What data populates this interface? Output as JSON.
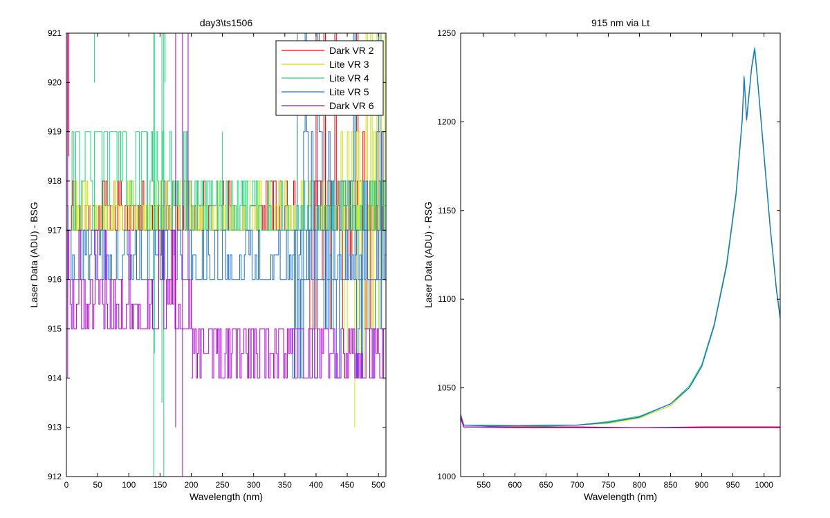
{
  "chart_data": [
    {
      "type": "line",
      "title": "day3\\ts1506",
      "xlabel": "Wavelength (nm)",
      "ylabel": "Laser Data (ADU) - BSG",
      "xlim": [
        0,
        512
      ],
      "ylim": [
        912,
        921
      ],
      "xticks": [
        0,
        50,
        100,
        150,
        200,
        250,
        300,
        350,
        400,
        450,
        500
      ],
      "yticks": [
        912,
        913,
        914,
        915,
        916,
        917,
        918,
        919,
        920,
        921
      ],
      "grid": false,
      "legend_position": "top-right",
      "series": [
        {
          "name": "Dark VR 2",
          "color": "#ff0000",
          "segments": [
            {
              "x0": 0,
              "x1": 512,
              "values": [
                917,
                917.5,
                918
              ],
              "step": 2,
              "seed": 11,
              "p": [
                0.55,
                0.25,
                0.2
              ]
            },
            {
              "x0": 385,
              "x1": 512,
              "values": [
                915,
                916,
                917,
                918,
                919,
                921
              ],
              "step": 2.5,
              "seed": 12,
              "p": [
                0.12,
                0.15,
                0.3,
                0.25,
                0.1,
                0.08
              ]
            }
          ],
          "spikes": [
            [
              0,
              921
            ],
            [
              2,
              919
            ],
            [
              4,
              918.5
            ],
            [
              398,
              921
            ],
            [
              400,
              915
            ],
            [
              405,
              920
            ],
            [
              420,
              921
            ],
            [
              455,
              921
            ]
          ]
        },
        {
          "name": "Lite VR 3",
          "color": "#c8e600",
          "segments": [
            {
              "x0": 0,
              "x1": 512,
              "values": [
                917,
                917.5,
                918
              ],
              "step": 2,
              "seed": 21,
              "p": [
                0.5,
                0.3,
                0.2
              ]
            },
            {
              "x0": 435,
              "x1": 512,
              "values": [
                914,
                915,
                916,
                917,
                918,
                919,
                921
              ],
              "step": 2.5,
              "seed": 22,
              "p": [
                0.1,
                0.15,
                0.15,
                0.2,
                0.2,
                0.1,
                0.1
              ]
            }
          ],
          "spikes": [
            [
              462,
              913
            ],
            [
              440,
              921
            ],
            [
              505,
              916
            ],
            [
              510,
              917.5
            ]
          ]
        },
        {
          "name": "Lite VR 4",
          "color": "#1fd67a",
          "segments": [
            {
              "x0": 0,
              "x1": 130,
              "values": [
                917,
                917.5,
                918,
                919
              ],
              "step": 3,
              "seed": 31,
              "p": [
                0.15,
                0.1,
                0.2,
                0.55
              ]
            },
            {
              "x0": 130,
              "x1": 250,
              "values": [
                917,
                917.5,
                918,
                919
              ],
              "step": 2,
              "seed": 32,
              "p": [
                0.35,
                0.25,
                0.25,
                0.15
              ]
            },
            {
              "x0": 250,
              "x1": 512,
              "values": [
                917,
                917.5,
                918
              ],
              "step": 2,
              "seed": 33,
              "p": [
                0.5,
                0.3,
                0.2
              ]
            }
          ],
          "spikes": [
            [
              45,
              920
            ],
            [
              140,
              912
            ],
            [
              141,
              914.5
            ],
            [
              150,
              921
            ],
            [
              153,
              913.5
            ],
            [
              156,
              912
            ],
            [
              158,
              920
            ]
          ]
        },
        {
          "name": "Lite VR 5",
          "color": "#1a6fd6",
          "segments": [
            {
              "x0": 0,
              "x1": 512,
              "values": [
                916,
                916.5,
                917
              ],
              "step": 2.5,
              "seed": 41,
              "p": [
                0.55,
                0.2,
                0.25
              ]
            },
            {
              "x0": 360,
              "x1": 512,
              "values": [
                914,
                915,
                916,
                917,
                918,
                919,
                921
              ],
              "step": 2.5,
              "seed": 42,
              "p": [
                0.15,
                0.15,
                0.2,
                0.15,
                0.2,
                0.1,
                0.05
              ]
            }
          ],
          "spikes": [
            [
              0,
              918
            ],
            [
              365,
              921
            ],
            [
              370,
              914
            ],
            [
              512,
              918
            ]
          ]
        },
        {
          "name": "Dark VR 6",
          "color": "#b000e0",
          "segments": [
            {
              "x0": 0,
              "x1": 200,
              "values": [
                915,
                915.5,
                916,
                917
              ],
              "step": 2,
              "seed": 51,
              "p": [
                0.45,
                0.2,
                0.25,
                0.1
              ]
            },
            {
              "x0": 200,
              "x1": 512,
              "values": [
                914,
                914.5,
                915
              ],
              "step": 2,
              "seed": 52,
              "p": [
                0.3,
                0.25,
                0.45
              ]
            }
          ],
          "spikes": [
            [
              2,
              914
            ],
            [
              186,
              912
            ],
            [
              188,
              921
            ],
            [
              195,
              916
            ],
            [
              175,
              913
            ]
          ]
        }
      ]
    },
    {
      "type": "line",
      "title": "915 nm via Lt",
      "xlabel": "Wavelength (nm)",
      "ylabel": "Laser Data (ADU) - RSG",
      "xlim": [
        513,
        1026
      ],
      "ylim": [
        1000,
        1250
      ],
      "xticks": [
        550,
        600,
        650,
        700,
        750,
        800,
        850,
        900,
        950,
        1000
      ],
      "yticks": [
        1000,
        1050,
        1100,
        1150,
        1200,
        1250
      ],
      "grid": false,
      "series": [
        {
          "name": "Lite VR 3",
          "color": "#c8e600",
          "points": [
            [
              513,
              1034
            ],
            [
              518,
              1029
            ],
            [
              560,
              1028.5
            ],
            [
              650,
              1028.5
            ],
            [
              700,
              1029
            ],
            [
              750,
              1030
            ],
            [
              800,
              1033
            ],
            [
              850,
              1040
            ],
            [
              880,
              1050
            ],
            [
              900,
              1062
            ],
            [
              920,
              1085
            ],
            [
              940,
              1118
            ],
            [
              955,
              1158
            ],
            [
              965,
              1200
            ],
            [
              968,
              1225
            ],
            [
              972,
              1200
            ],
            [
              980,
              1230
            ],
            [
              985,
              1240
            ],
            [
              990,
              1222
            ],
            [
              1000,
              1180
            ],
            [
              1010,
              1140
            ],
            [
              1020,
              1105
            ],
            [
              1026,
              1090
            ]
          ]
        },
        {
          "name": "Lite VR 4",
          "color": "#1fd67a",
          "points": [
            [
              513,
              1035
            ],
            [
              518,
              1029
            ],
            [
              560,
              1029
            ],
            [
              650,
              1028.5
            ],
            [
              700,
              1029
            ],
            [
              750,
              1031
            ],
            [
              800,
              1034
            ],
            [
              850,
              1041
            ],
            [
              880,
              1051
            ],
            [
              900,
              1063
            ],
            [
              920,
              1086
            ],
            [
              940,
              1120
            ],
            [
              955,
              1160
            ],
            [
              965,
              1202
            ],
            [
              968,
              1226
            ],
            [
              972,
              1202
            ],
            [
              980,
              1231
            ],
            [
              985,
              1242
            ],
            [
              990,
              1223
            ],
            [
              1000,
              1182
            ],
            [
              1010,
              1141
            ],
            [
              1020,
              1106
            ],
            [
              1026,
              1090
            ]
          ]
        },
        {
          "name": "Lite VR 5",
          "color": "#1a6fd6",
          "points": [
            [
              513,
              1035
            ],
            [
              518,
              1029
            ],
            [
              560,
              1028.5
            ],
            [
              650,
              1029
            ],
            [
              700,
              1029
            ],
            [
              750,
              1030.5
            ],
            [
              800,
              1033.5
            ],
            [
              850,
              1041
            ],
            [
              880,
              1050
            ],
            [
              900,
              1062
            ],
            [
              920,
              1085
            ],
            [
              940,
              1119
            ],
            [
              955,
              1159
            ],
            [
              965,
              1201
            ],
            [
              968,
              1225
            ],
            [
              972,
              1201
            ],
            [
              980,
              1230
            ],
            [
              985,
              1241
            ],
            [
              990,
              1222
            ],
            [
              1000,
              1181
            ],
            [
              1010,
              1140
            ],
            [
              1020,
              1105
            ],
            [
              1026,
              1089
            ]
          ]
        },
        {
          "name": "Dark VR 2",
          "color": "#ff0000",
          "points": [
            [
              513,
              1033
            ],
            [
              518,
              1028
            ],
            [
              600,
              1027.5
            ],
            [
              700,
              1027.5
            ],
            [
              800,
              1027.5
            ],
            [
              900,
              1027.5
            ],
            [
              1026,
              1027.5
            ]
          ]
        },
        {
          "name": "Dark VR 6",
          "color": "#b000e0",
          "points": [
            [
              513,
              1034
            ],
            [
              518,
              1028
            ],
            [
              600,
              1028
            ],
            [
              700,
              1028
            ],
            [
              800,
              1027.5
            ],
            [
              900,
              1028
            ],
            [
              1026,
              1028
            ]
          ]
        }
      ]
    }
  ]
}
